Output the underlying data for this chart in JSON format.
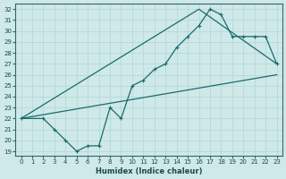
{
  "xlabel": "Humidex (Indice chaleur)",
  "bg_color": "#cfe8e8",
  "grid_color": "#add8d8",
  "line_color": "#1a6b6b",
  "xlim": [
    -0.5,
    23.5
  ],
  "ylim_min": 18.6,
  "ylim_max": 32.5,
  "xticks": [
    0,
    1,
    2,
    3,
    4,
    5,
    6,
    7,
    8,
    9,
    10,
    11,
    12,
    13,
    14,
    15,
    16,
    17,
    18,
    19,
    20,
    21,
    22,
    23
  ],
  "yticks": [
    19,
    20,
    21,
    22,
    23,
    24,
    25,
    26,
    27,
    28,
    29,
    30,
    31,
    32
  ],
  "main_x": [
    0,
    2,
    3,
    4,
    5,
    6,
    7,
    8,
    9,
    10,
    11,
    12,
    13,
    14,
    15,
    16,
    17,
    18,
    19,
    20,
    21,
    22,
    23
  ],
  "main_y": [
    22.0,
    22.0,
    21.0,
    20.0,
    19.0,
    19.5,
    19.5,
    23.0,
    22.0,
    25.0,
    25.5,
    26.5,
    27.0,
    28.5,
    29.5,
    30.5,
    32.0,
    31.5,
    29.5,
    29.5,
    29.5,
    29.5,
    27.0
  ],
  "line1_x": [
    0,
    23
  ],
  "line1_y": [
    22.0,
    26.0
  ],
  "line2_x": [
    0,
    16,
    23
  ],
  "line2_y": [
    22.0,
    32.0,
    27.0
  ]
}
